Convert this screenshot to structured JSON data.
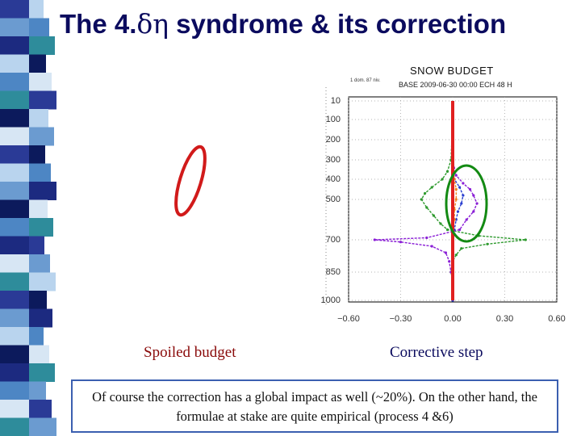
{
  "slide": {
    "title_pre": "The 4.",
    "title_sym": "δη",
    "title_post": " syndrome & its correction",
    "caption_left": "Spoiled budget",
    "caption_right": "Corrective step",
    "note": "Of course the correction has a global impact as well (~20%). On the other hand, the formulae at stake are quite empirical (process 4 &6)"
  },
  "colors": {
    "stripe_palette": [
      "#2a3a96",
      "#6b9bd0",
      "#1c2a80",
      "#b9d4ee",
      "#4d86c4",
      "#2e8c9b",
      "#0c1a5c",
      "#d7e6f4",
      "#ffffff"
    ],
    "title": "#0b0b5e",
    "left_ellipse": "#d11a1a",
    "right_ellipse": "#138a13"
  },
  "chart_data": {
    "type": "line",
    "title": "SNOW BUDGET",
    "subtitle_small": "1 dom. 87 niv.",
    "subtitle": "BASE 2009-06-30 00:00 ECH 48 H",
    "x_ticks": [
      "−0.60",
      "−0.30",
      "0.00",
      "0.30",
      "0.60"
    ],
    "xlim": [
      -0.6,
      0.6
    ],
    "y_ticks": [
      "10",
      "100",
      "200",
      "300",
      "400",
      "500",
      "700",
      "850",
      "1000"
    ],
    "y_tick_values": [
      10,
      100,
      200,
      300,
      400,
      500,
      700,
      850,
      1000
    ],
    "ylim": [
      0,
      1000
    ],
    "series": [
      {
        "color": "#e02020",
        "y": [
          10,
          1000
        ],
        "x": [
          0.0,
          0.0
        ]
      },
      {
        "color": "#2e9a2e",
        "y": [
          100,
          300,
          360,
          400,
          440,
          470,
          500,
          540,
          580,
          620,
          650,
          680,
          700,
          720,
          740,
          770,
          800,
          850,
          900,
          1000
        ],
        "x": [
          0.0,
          -0.01,
          -0.03,
          -0.06,
          -0.12,
          -0.16,
          -0.18,
          -0.15,
          -0.11,
          -0.07,
          -0.03,
          0.15,
          0.42,
          0.2,
          0.05,
          0.02,
          0.0,
          -0.01,
          0.0,
          0.0
        ]
      },
      {
        "color": "#8a1fd6",
        "y": [
          100,
          300,
          380,
          420,
          450,
          480,
          520,
          560,
          600,
          650,
          690,
          700,
          710,
          730,
          760,
          800,
          850,
          900,
          1000
        ],
        "x": [
          0.0,
          0.0,
          0.02,
          0.06,
          0.1,
          0.12,
          0.14,
          0.12,
          0.08,
          0.04,
          -0.15,
          -0.45,
          -0.3,
          -0.12,
          -0.04,
          -0.02,
          -0.01,
          0.0,
          0.0
        ]
      },
      {
        "color": "#2a3fd0",
        "y": [
          100,
          350,
          400,
          440,
          480,
          520,
          560,
          600,
          650,
          700,
          750,
          1000
        ],
        "x": [
          0.0,
          0.0,
          0.01,
          0.04,
          0.06,
          0.05,
          0.03,
          0.02,
          0.01,
          0.0,
          0.0,
          0.0
        ]
      },
      {
        "color": "#f08020",
        "y": [
          300,
          400,
          450,
          500,
          550,
          600,
          650,
          700
        ],
        "x": [
          0.0,
          0.01,
          0.02,
          0.02,
          0.01,
          0.01,
          0.0,
          0.0
        ]
      }
    ]
  }
}
